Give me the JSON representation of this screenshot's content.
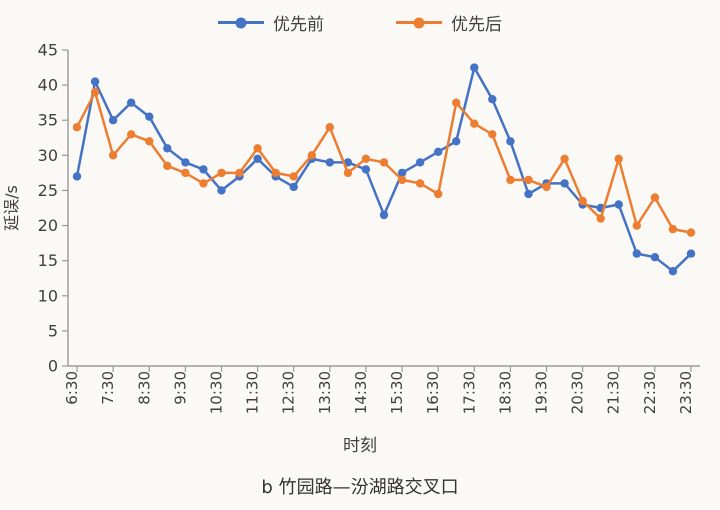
{
  "page": {
    "background": "#faf9f6"
  },
  "caption": "b 竹园路—汾湖路交叉口",
  "chart_data": {
    "type": "line",
    "title": "",
    "xlabel": "时刻",
    "ylabel": "延误/s",
    "ylim": [
      0,
      45
    ],
    "ytick_step": 5,
    "grid": false,
    "legend_position": "top",
    "marker": "circle",
    "x_tick_every": 2,
    "x": [
      "6:30",
      "7:00",
      "7:30",
      "8:00",
      "8:30",
      "9:00",
      "9:30",
      "10:00",
      "10:30",
      "11:00",
      "11:30",
      "12:00",
      "12:30",
      "13:00",
      "13:30",
      "14:00",
      "14:30",
      "15:00",
      "15:30",
      "16:00",
      "16:30",
      "17:00",
      "17:30",
      "18:00",
      "18:30",
      "19:00",
      "19:30",
      "20:00",
      "20:30",
      "21:00",
      "21:30",
      "22:00",
      "22:30",
      "23:00",
      "23:30"
    ],
    "series": [
      {
        "name": "优先前",
        "color": "#4472C4",
        "values": [
          27,
          40.5,
          35,
          37.5,
          35.5,
          31,
          29,
          28,
          25,
          27,
          29.5,
          27,
          25.5,
          29.5,
          29,
          29,
          28,
          21.5,
          27.5,
          29,
          30.5,
          32,
          42.5,
          38,
          32,
          24.5,
          26,
          26,
          23,
          22.5,
          23,
          16,
          15.5,
          13.5,
          16
        ]
      },
      {
        "name": "优先后",
        "color": "#ED7D31",
        "values": [
          34,
          39,
          30,
          33,
          32,
          28.5,
          27.5,
          26,
          27.5,
          27.5,
          31,
          27.5,
          27,
          30,
          34,
          27.5,
          29.5,
          29,
          26.5,
          26,
          24.5,
          37.5,
          34.5,
          33,
          26.5,
          26.5,
          25.5,
          29.5,
          23.5,
          21,
          29.5,
          20,
          24,
          19.5,
          19
        ]
      }
    ]
  }
}
